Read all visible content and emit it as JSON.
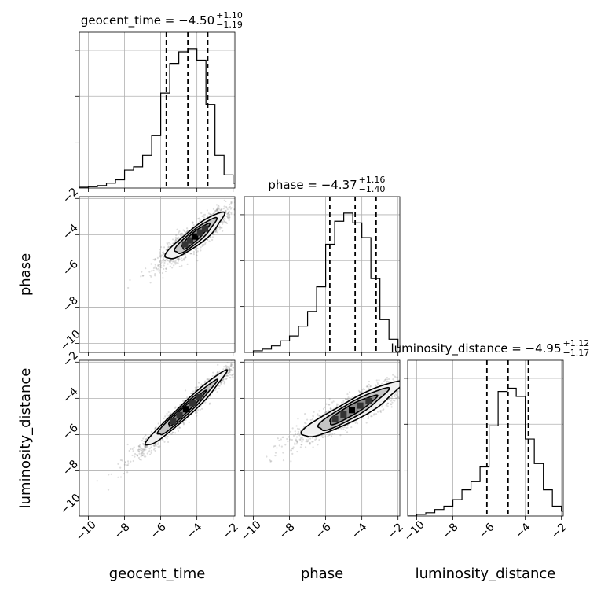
{
  "chart_data": {
    "type": "corner",
    "parameters": [
      "geocent_time",
      "phase",
      "luminosity_distance"
    ],
    "axis_range": [
      -10.5,
      -1.9
    ],
    "ticks": [
      -10,
      -8,
      -6,
      -4,
      -2
    ],
    "tick_labels": [
      "−10",
      "−8",
      "−6",
      "−4",
      "−2"
    ],
    "grid": true,
    "x_axis_labels": [
      "geocent_time",
      "phase",
      "luminosity_distance"
    ],
    "y_axis_labels": [
      "phase",
      "luminosity_distance"
    ],
    "titles": [
      {
        "prefix": "geocent_time = −4.50",
        "plus": "+1.10",
        "minus": "−1.19"
      },
      {
        "prefix": "phase = −4.37",
        "plus": "+1.16",
        "minus": "−1.40"
      },
      {
        "prefix": "luminosity_distance = −4.95",
        "plus": "+1.12",
        "minus": "−1.17"
      }
    ],
    "quantiles": [
      [
        -5.69,
        -4.5,
        -3.4
      ],
      [
        -5.77,
        -4.37,
        -3.21
      ],
      [
        -6.12,
        -4.95,
        -3.83
      ]
    ],
    "histograms": [
      {
        "bin_edges": [
          -10.5,
          -10.0,
          -9.5,
          -9.0,
          -8.5,
          -8.0,
          -7.5,
          -7.0,
          -6.5,
          -6.0,
          -5.5,
          -5.0,
          -4.5,
          -4.0,
          -3.5,
          -3.0,
          -2.5,
          -2.0,
          -1.9
        ],
        "counts": [
          0.005,
          0.008,
          0.015,
          0.03,
          0.05,
          0.11,
          0.13,
          0.2,
          0.32,
          0.58,
          0.76,
          0.83,
          0.85,
          0.78,
          0.51,
          0.2,
          0.08,
          0.03
        ]
      },
      {
        "bin_edges": [
          -10.5,
          -10.0,
          -9.5,
          -9.0,
          -8.5,
          -8.0,
          -7.5,
          -7.0,
          -6.5,
          -6.0,
          -5.5,
          -5.0,
          -4.5,
          -4.0,
          -3.5,
          -3.0,
          -2.5,
          -2.0,
          -1.9
        ],
        "counts": [
          0.0,
          0.01,
          0.02,
          0.04,
          0.07,
          0.1,
          0.16,
          0.25,
          0.4,
          0.66,
          0.8,
          0.85,
          0.79,
          0.7,
          0.45,
          0.2,
          0.08,
          0.03
        ]
      },
      {
        "bin_edges": [
          -10.5,
          -10.0,
          -9.5,
          -9.0,
          -8.5,
          -8.0,
          -7.5,
          -7.0,
          -6.5,
          -6.0,
          -5.5,
          -5.0,
          -4.5,
          -4.0,
          -3.5,
          -3.0,
          -2.5,
          -2.0,
          -1.9
        ],
        "counts": [
          0.0,
          0.01,
          0.02,
          0.04,
          0.06,
          0.1,
          0.16,
          0.21,
          0.3,
          0.55,
          0.76,
          0.78,
          0.73,
          0.47,
          0.32,
          0.16,
          0.06,
          0.03
        ]
      }
    ],
    "contours": [
      {
        "row": 1,
        "col": 0,
        "center": [
          -4.1,
          -4.1
        ],
        "levels": [
          {
            "a": 2.0,
            "b": 0.45,
            "angle": 38,
            "fill": "#f0f0f0"
          },
          {
            "a": 1.45,
            "b": 0.33,
            "angle": 40,
            "fill": "#c4c4c4"
          },
          {
            "a": 1.0,
            "b": 0.22,
            "angle": 42,
            "fill": "#8a8a8a"
          }
        ]
      },
      {
        "row": 2,
        "col": 0,
        "center": [
          -4.6,
          -4.6
        ],
        "levels": [
          {
            "a": 3.0,
            "b": 0.35,
            "angle": 43,
            "fill": "#f0f0f0"
          },
          {
            "a": 2.2,
            "b": 0.25,
            "angle": 43,
            "fill": "#c4c4c4"
          },
          {
            "a": 1.4,
            "b": 0.16,
            "angle": 43,
            "fill": "#8a8a8a"
          }
        ]
      },
      {
        "row": 2,
        "col": 1,
        "center": [
          -4.55,
          -4.65
        ],
        "levels": [
          {
            "a": 3.1,
            "b": 0.55,
            "angle": 28,
            "fill": "#f0f0f0"
          },
          {
            "a": 2.2,
            "b": 0.4,
            "angle": 30,
            "fill": "#c4c4c4"
          },
          {
            "a": 1.5,
            "b": 0.27,
            "angle": 30,
            "fill": "#8a8a8a"
          }
        ]
      }
    ]
  }
}
